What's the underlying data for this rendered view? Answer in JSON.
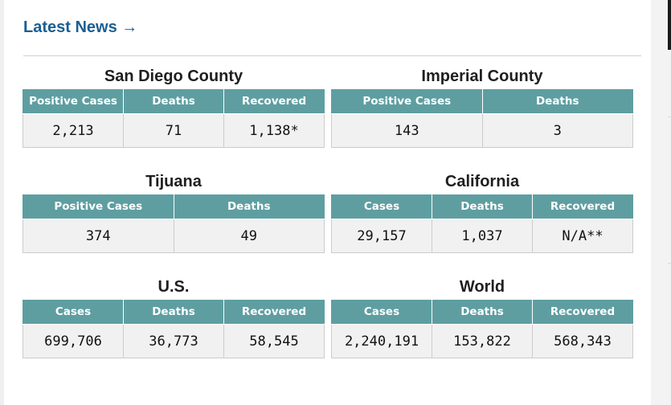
{
  "latest_news": "Latest News →",
  "blocks": {
    "san_diego": {
      "title": "San Diego County",
      "headers": [
        "Positive Cases",
        "Deaths",
        "Recovered"
      ],
      "values": [
        "2,213",
        "71",
        "1,138*"
      ]
    },
    "imperial": {
      "title": "Imperial County",
      "headers": [
        "Positive Cases",
        "Deaths"
      ],
      "values": [
        "143",
        "3"
      ]
    },
    "tijuana": {
      "title": "Tijuana",
      "headers": [
        "Positive Cases",
        "Deaths"
      ],
      "values": [
        "374",
        "49"
      ]
    },
    "california": {
      "title": "California",
      "headers": [
        "Cases",
        "Deaths",
        "Recovered"
      ],
      "values": [
        "29,157",
        "1,037",
        "N/A**"
      ]
    },
    "us": {
      "title": "U.S.",
      "headers": [
        "Cases",
        "Deaths",
        "Recovered"
      ],
      "values": [
        "699,706",
        "36,773",
        "58,545"
      ]
    },
    "world": {
      "title": "World",
      "headers": [
        "Cases",
        "Deaths",
        "Recovered"
      ],
      "values": [
        "2,240,191",
        "153,822",
        "568,343"
      ]
    }
  },
  "colors": {
    "header_bg": "#5e9ea1",
    "link": "#1a5f93",
    "cell_bg": "#f1f1f1"
  }
}
